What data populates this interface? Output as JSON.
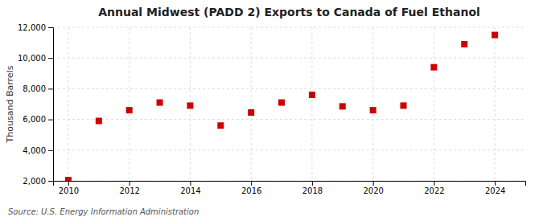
{
  "chart_data": {
    "type": "scatter",
    "title": "Annual Midwest (PADD 2) Exports to Canada of Fuel Ethanol",
    "ylabel": "Thousand Barrels",
    "source": "Source: U.S. Energy Information Administration",
    "x": [
      2010,
      2011,
      2012,
      2013,
      2014,
      2015,
      2016,
      2017,
      2018,
      2019,
      2020,
      2021,
      2022,
      2023,
      2024
    ],
    "values": [
      2050,
      5900,
      6600,
      7100,
      6900,
      5600,
      6450,
      7100,
      7600,
      6850,
      6600,
      6900,
      9400,
      10900,
      11500
    ],
    "color": "#cc0000",
    "marker": "square",
    "xlim": [
      2009.5,
      2025.0
    ],
    "xticks": [
      2010,
      2012,
      2014,
      2016,
      2018,
      2020,
      2022,
      2024
    ],
    "ylim": [
      2000,
      12000
    ],
    "yticks": [
      {
        "value": 2000,
        "label": "2,000"
      },
      {
        "value": 4000,
        "label": "4,000"
      },
      {
        "value": 6000,
        "label": "6,000"
      },
      {
        "value": 8000,
        "label": "8,000"
      },
      {
        "value": 10000,
        "label": "10,000"
      },
      {
        "value": 12000,
        "label": "12,000"
      }
    ],
    "grid": true
  }
}
